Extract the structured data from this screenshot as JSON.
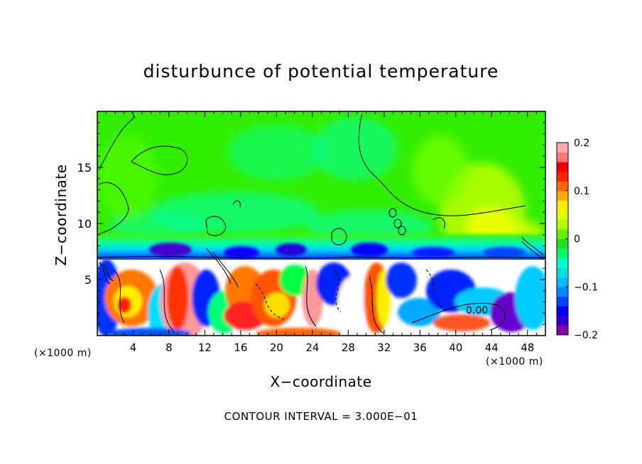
{
  "chart_data": {
    "type": "heatmap",
    "title": "disturbunce of potential temperature",
    "xlabel": "X−coordinate",
    "ylabel": "Z−coordinate",
    "x_unit_left": "(×1000 m)",
    "x_unit_right": "(×1000 m)",
    "contour_interval": "CONTOUR INTERVAL = 3.000E−01",
    "contour_label": "0.00",
    "xlim": [
      0,
      50
    ],
    "ylim": [
      0,
      20
    ],
    "x_ticks": [
      4,
      8,
      12,
      16,
      20,
      24,
      28,
      32,
      36,
      40,
      44,
      48
    ],
    "y_ticks": [
      5,
      10,
      15
    ],
    "colorbar": {
      "min": -0.2,
      "max": 0.2,
      "tick_values": [
        0.2,
        0.1,
        0,
        -0.1,
        -0.2
      ],
      "tick_labels": [
        "0.2",
        "0.1",
        "0",
        "−0.1",
        "−0.2"
      ],
      "colors": [
        "#8800aa",
        "#3300cc",
        "#0000ff",
        "#0044ff",
        "#0088ff",
        "#00bbff",
        "#00dddd",
        "#00ffcc",
        "#00ff66",
        "#22dd22",
        "#66ee00",
        "#aaff00",
        "#ddff00",
        "#ffee00",
        "#ffaa00",
        "#ff6600",
        "#ff2200",
        "#ee0000",
        "#ff7777",
        "#ffaaaa"
      ]
    },
    "grid": false,
    "legend": "colorbar-right"
  }
}
